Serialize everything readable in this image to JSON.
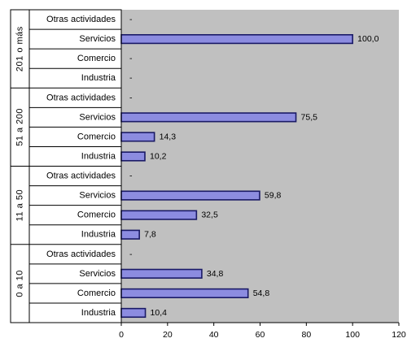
{
  "chart_data": {
    "type": "bar",
    "orientation": "horizontal",
    "groups": [
      {
        "label": "201 o más",
        "rows": [
          {
            "category": "Otras actividades",
            "value": null,
            "label": "-"
          },
          {
            "category": "Servicios",
            "value": 100.0,
            "label": "100,0"
          },
          {
            "category": "Comercio",
            "value": null,
            "label": "-"
          },
          {
            "category": "Industria",
            "value": null,
            "label": "-"
          }
        ]
      },
      {
        "label": "51 a 200",
        "rows": [
          {
            "category": "Otras actividades",
            "value": null,
            "label": "-"
          },
          {
            "category": "Servicios",
            "value": 75.5,
            "label": "75,5"
          },
          {
            "category": "Comercio",
            "value": 14.3,
            "label": "14,3"
          },
          {
            "category": "Industria",
            "value": 10.2,
            "label": "10,2"
          }
        ]
      },
      {
        "label": "11 a 50",
        "rows": [
          {
            "category": "Otras actividades",
            "value": null,
            "label": "-"
          },
          {
            "category": "Servicios",
            "value": 59.8,
            "label": "59,8"
          },
          {
            "category": "Comercio",
            "value": 32.5,
            "label": "32,5"
          },
          {
            "category": "Industria",
            "value": 7.8,
            "label": "7,8"
          }
        ]
      },
      {
        "label": "0 a 10",
        "rows": [
          {
            "category": "Otras actividades",
            "value": null,
            "label": "-"
          },
          {
            "category": "Servicios",
            "value": 34.8,
            "label": "34,8"
          },
          {
            "category": "Comercio",
            "value": 54.8,
            "label": "54,8"
          },
          {
            "category": "Industria",
            "value": 10.4,
            "label": "10,4"
          }
        ]
      }
    ],
    "xlim": [
      0,
      120
    ],
    "xticks": [
      0,
      20,
      40,
      60,
      80,
      100,
      120
    ],
    "title": "",
    "xlabel": "",
    "ylabel": "",
    "grid": false,
    "legend": "none",
    "colors": {
      "bar_fill": "#8c8ce0",
      "bar_stroke": "#1a1a66",
      "plot_background": "#c0c0c0",
      "label_background": "#ffffff"
    }
  }
}
